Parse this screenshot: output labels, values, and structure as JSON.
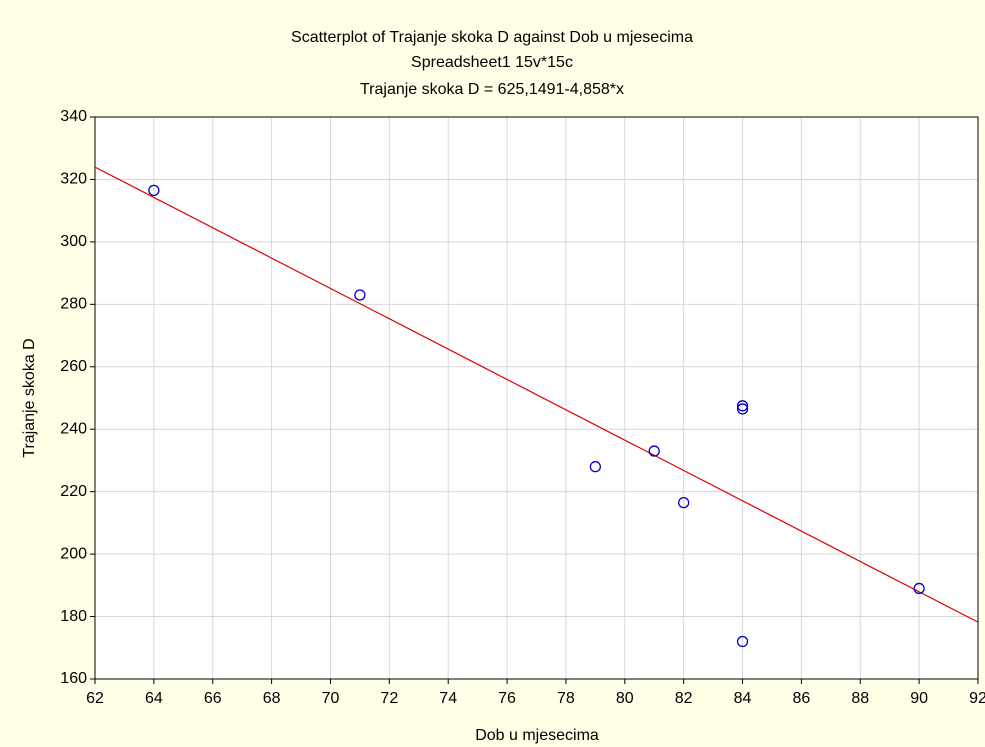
{
  "chart_data": {
    "type": "scatter",
    "title": "Scatterplot of Trajanje skoka D against Dob u mjesecima",
    "subtitle": "Spreadsheet1 15v*15c",
    "annotation": "Trajanje skoka D = 625,1491-4,858*x",
    "x_label": "Dob u mjesecima",
    "y_label": "Trajanje skoka D",
    "x": [
      64,
      71,
      79,
      81,
      82,
      84,
      84,
      84,
      90
    ],
    "values": [
      316.5,
      283,
      228,
      233,
      216.5,
      247.5,
      246.5,
      172,
      189
    ],
    "color": "#0000cc",
    "fit": {
      "intercept": 625.1491,
      "slope": -4.858,
      "color": "#dd0000"
    },
    "xlim": [
      62,
      92
    ],
    "xticks": [
      62,
      64,
      66,
      68,
      70,
      72,
      74,
      76,
      78,
      80,
      82,
      84,
      86,
      88,
      90,
      92
    ],
    "ylim": [
      160,
      340
    ],
    "yticks": [
      160,
      180,
      200,
      220,
      240,
      260,
      280,
      300,
      320,
      340
    ],
    "grid": true
  }
}
